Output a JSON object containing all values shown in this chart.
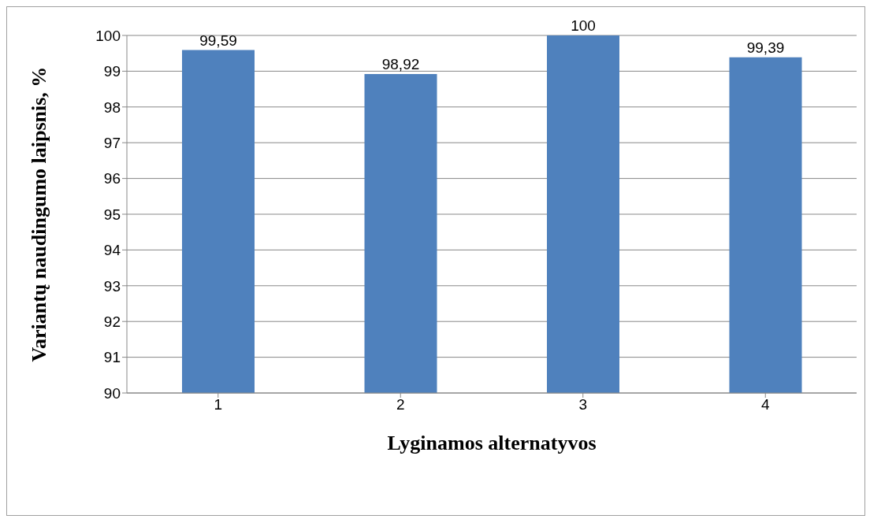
{
  "chart_data": {
    "type": "bar",
    "xlabel": "Lyginamos alternatyvos",
    "ylabel": "Variantų naudingumo laipsnis, %",
    "categories": [
      "1",
      "2",
      "3",
      "4"
    ],
    "values": [
      99.59,
      98.92,
      100,
      99.39
    ],
    "value_labels": [
      "99,59",
      "98,92",
      "100",
      "99,39"
    ],
    "color": "#4f81bd",
    "ylim": [
      90,
      100
    ],
    "yticks": [
      90,
      91,
      92,
      93,
      94,
      95,
      96,
      97,
      98,
      99,
      100
    ],
    "grid": "y",
    "legend": false
  }
}
